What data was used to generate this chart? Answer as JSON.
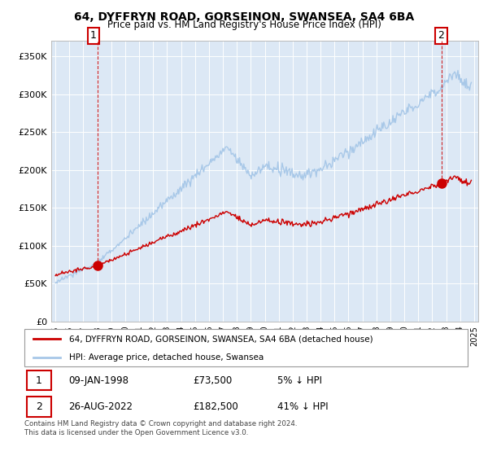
{
  "title_line1": "64, DYFFRYN ROAD, GORSEINON, SWANSEA, SA4 6BA",
  "title_line2": "Price paid vs. HM Land Registry's House Price Index (HPI)",
  "legend_label1": "64, DYFFRYN ROAD, GORSEINON, SWANSEA, SA4 6BA (detached house)",
  "legend_label2": "HPI: Average price, detached house, Swansea",
  "annotation1_label": "1",
  "annotation1_date": "09-JAN-1998",
  "annotation1_price": "£73,500",
  "annotation1_hpi": "5% ↓ HPI",
  "annotation2_label": "2",
  "annotation2_date": "26-AUG-2022",
  "annotation2_price": "£182,500",
  "annotation2_hpi": "41% ↓ HPI",
  "footer": "Contains HM Land Registry data © Crown copyright and database right 2024.\nThis data is licensed under the Open Government Licence v3.0.",
  "sale1_year": 1998.03,
  "sale1_price": 73500,
  "sale2_year": 2022.65,
  "sale2_price": 182500,
  "hpi_color": "#a8c8e8",
  "property_color": "#cc0000",
  "dot_color": "#cc0000",
  "bg_color": "#dce8f5",
  "ylim_min": 0,
  "ylim_max": 370000,
  "yticks": [
    0,
    50000,
    100000,
    150000,
    200000,
    250000,
    300000,
    350000
  ],
  "xlim_min": 1994.7,
  "xlim_max": 2025.3,
  "xticks": [
    1995,
    1996,
    1997,
    1998,
    1999,
    2000,
    2001,
    2002,
    2003,
    2004,
    2005,
    2006,
    2007,
    2008,
    2009,
    2010,
    2011,
    2012,
    2013,
    2014,
    2015,
    2016,
    2017,
    2018,
    2019,
    2020,
    2021,
    2022,
    2023,
    2024,
    2025
  ]
}
